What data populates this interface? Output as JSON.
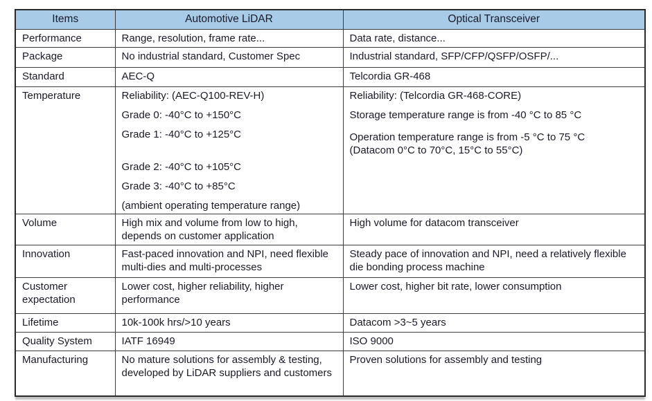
{
  "colors": {
    "header_bg": "#a8cbe8",
    "border_outer": "#2a2a2a",
    "border_inner": "#3c3c3c",
    "text": "#1a1a28",
    "page_bg": "#ffffff"
  },
  "table": {
    "headers": {
      "items": "Items",
      "lidar": "Automotive LiDAR",
      "optical": "Optical Transceiver"
    },
    "rows": [
      {
        "item": "Performance",
        "lidar": "Range, resolution, frame rate...",
        "optical": "Data rate, distance..."
      },
      {
        "item": "Package",
        "lidar": "No industrial standard, Customer Spec",
        "optical": "Industrial standard, SFP/CFP/QSFP/OSFP/..."
      },
      {
        "item": "Standard",
        "lidar": "AEC-Q",
        "optical": "Telcordia GR-468"
      },
      {
        "item": "Temperature",
        "lidar_lines": [
          "Reliability: (AEC-Q100-REV-H)",
          "Grade 0: -40°C to +150°C",
          "Grade 1: -40°C to +125°C",
          "Grade 2: -40°C to +105°C",
          "Grade 3: -40°C to +85°C",
          "(ambient operating temperature range)"
        ],
        "optical_lines": [
          "Reliability: (Telcordia GR-468-CORE)",
          "Storage temperature range is from -40 °C to 85 °C",
          "Operation temperature range is from -5 °C to 75 °C",
          "(Datacom 0°C to 70°C, 15°C to 55°C)"
        ]
      },
      {
        "item": "Volume",
        "lidar": "High mix and volume from low to high, depends on customer application",
        "optical": "High volume for datacom transceiver"
      },
      {
        "item": "Innovation",
        "lidar": "Fast-paced innovation and NPI, need flexible multi-dies and multi-processes",
        "optical": "Steady pace of innovation and NPI, need a relatively flexible die bonding process machine"
      },
      {
        "item": "Customer expectation",
        "lidar": "Lower cost, higher reliability, higher performance",
        "optical": "Lower cost, higher bit rate, lower consumption"
      },
      {
        "item": "Lifetime",
        "lidar": "10k-100k hrs/>10 years",
        "optical": "Datacom >3~5 years"
      },
      {
        "item": "Quality System",
        "lidar": "IATF 16949",
        "optical": "ISO 9000"
      },
      {
        "item": "Manufacturing",
        "lidar": "No mature solutions for assembly & testing, developed by LiDAR suppliers and customers",
        "optical": "Proven solutions for assembly and testing"
      }
    ]
  }
}
